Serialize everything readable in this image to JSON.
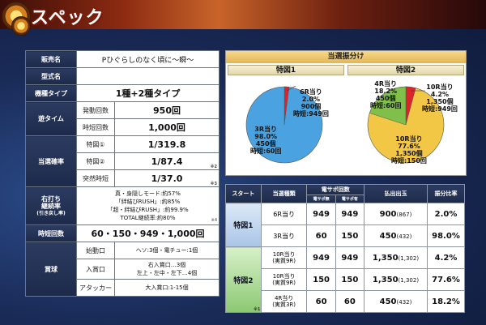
{
  "header": {
    "title": "スペック"
  },
  "spec": {
    "name_label": "販売名",
    "name_value": "Pひぐらしのなく頃に～瞬～",
    "model_label": "型式名",
    "model_value": "",
    "type_label": "機種タイプ",
    "type_value": "1種+2種タイプ",
    "yu_label": "遊タイム",
    "yu_rows": [
      {
        "sub": "発動回数",
        "val": "950回"
      },
      {
        "sub": "時短回数",
        "val": "1,000回"
      }
    ],
    "prob_label": "当選確率",
    "prob_rows": [
      {
        "sub": "特図①",
        "val": "1/319.8"
      },
      {
        "sub": "特図②",
        "val": "1/87.4",
        "mark": "※2"
      },
      {
        "sub": "突然時短",
        "val": "1/37.0",
        "mark": "※3"
      }
    ],
    "rush_label_1": "右打ち",
    "rush_label_2": "継続率",
    "rush_label_3": "(引き戻し率)",
    "rush_lines": [
      "真・身隠しモード:約57%",
      "「絆結びRUSH」:約85%",
      "「超・絆結びRUSH」:約99.9%",
      "TOTAL継続率:約80%"
    ],
    "rush_mark": "※4",
    "jitan_label": "時短回数",
    "jitan_value": "60・150・949・1,000回",
    "prize_label": "賞球",
    "prize_rows": [
      {
        "sub": "始動口",
        "val": "ヘソ:3個・電チュー:1個"
      },
      {
        "sub": "入賞口",
        "val1": "右入賞口…3個",
        "val2": "左上・左中・左下…4個"
      },
      {
        "sub": "アタッカー",
        "val": "大入賞口:1-15個"
      }
    ]
  },
  "distribution": {
    "title": "当選振分け",
    "pie1": {
      "head": "特図1",
      "big": {
        "l1": "3R当り",
        "l2": "98.0%",
        "l3": "450個",
        "l4": "時短:60回"
      },
      "small": {
        "l1": "6R当り",
        "l2": "2.0%",
        "l3": "900個",
        "l4": "時短:949回"
      }
    },
    "pie2": {
      "head": "特図2",
      "big": {
        "l1": "10R当り",
        "l2": "77.6%",
        "l3": "1,350個",
        "l4": "時短:150回"
      },
      "a": {
        "l1": "4R当り",
        "l2": "18.2%",
        "l3": "450個",
        "l4": "時短:60回"
      },
      "b": {
        "l1": "10R当り",
        "l2": "4.2%",
        "l3": "1,350個",
        "l4": "時短:949回"
      }
    },
    "colors": {
      "blue": "#4aa3e0",
      "red": "#d8262a",
      "yellow": "#f2c745",
      "green": "#7fbf4a"
    }
  },
  "table": {
    "headers": {
      "start": "スタート",
      "kind": "当選種類",
      "densapo": "電サポ回数",
      "no": "電サポ無",
      "yes": "電サポ有",
      "payout": "払出出玉",
      "ratio": "振分比率"
    },
    "g1_label": "特図1",
    "g2_label": "特図2",
    "g2_mark": "※1",
    "rows": [
      {
        "kind": "6R当り",
        "no": "949",
        "yes": "949",
        "payout": "900",
        "payout_sub": "(867)",
        "ratio": "2.0%"
      },
      {
        "kind": "3R当り",
        "no": "60",
        "yes": "150",
        "payout": "450",
        "payout_sub": "(432)",
        "ratio": "98.0%"
      },
      {
        "kind": "10R当り",
        "kind2": "(実質9R)",
        "no": "949",
        "yes": "949",
        "payout": "1,350",
        "payout_sub": "(1,302)",
        "ratio": "4.2%"
      },
      {
        "kind": "10R当り",
        "kind2": "(実質9R)",
        "no": "150",
        "yes": "150",
        "payout": "1,350",
        "payout_sub": "(1,302)",
        "ratio": "77.6%"
      },
      {
        "kind": "4R当り",
        "kind2": "(実質3R)",
        "no": "60",
        "yes": "60",
        "payout": "450",
        "payout_sub": "(432)",
        "ratio": "18.2%"
      }
    ]
  }
}
